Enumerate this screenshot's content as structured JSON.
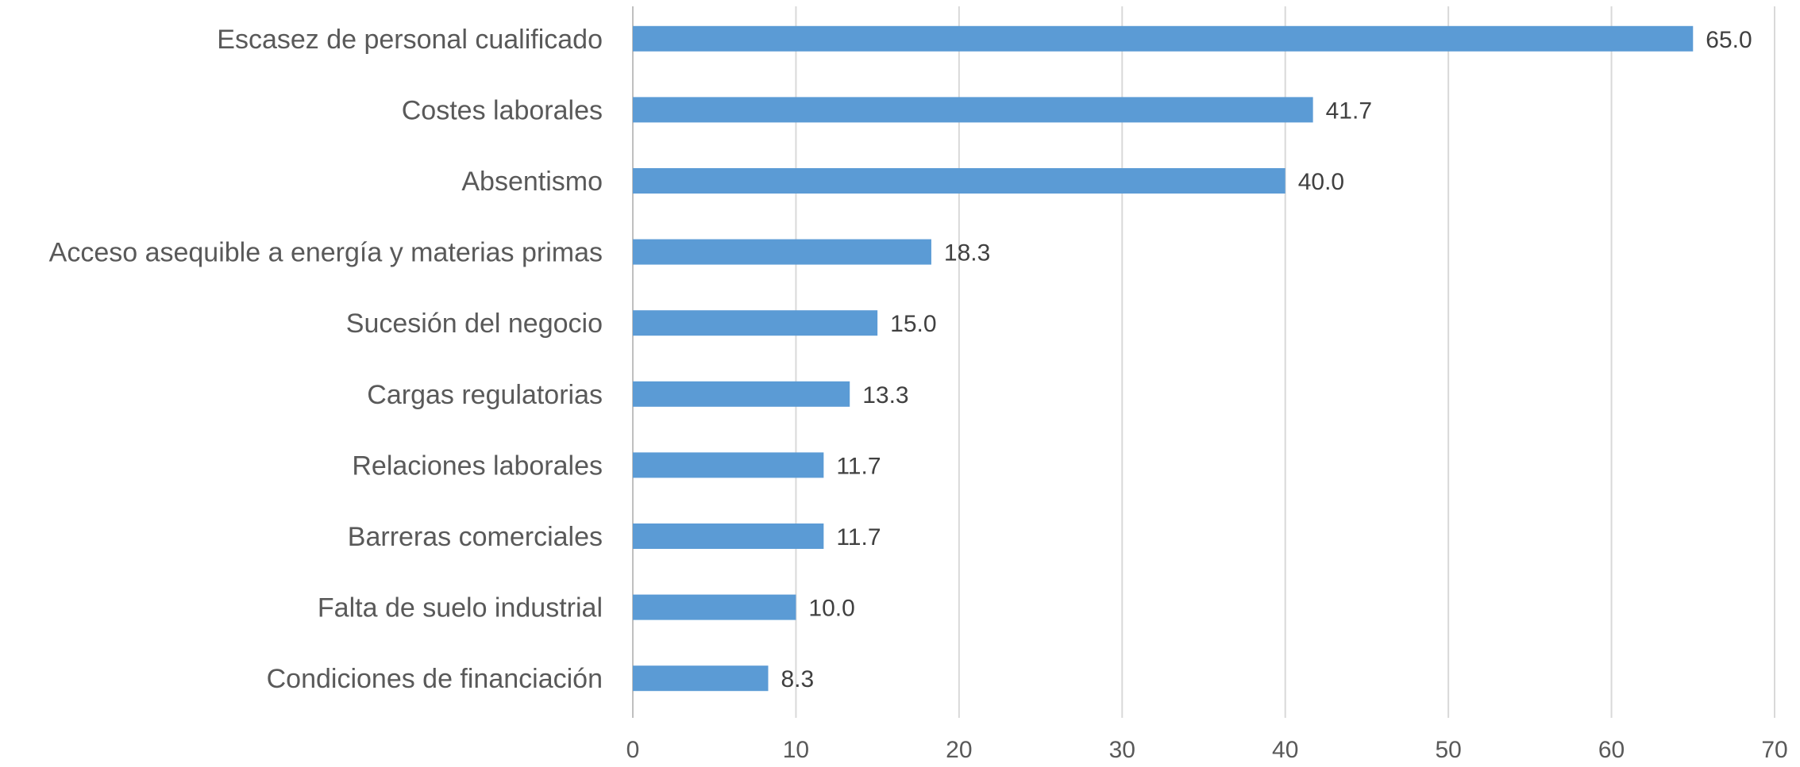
{
  "chart_data": {
    "type": "bar",
    "orientation": "horizontal",
    "categories": [
      "Escasez de personal cualificado",
      "Costes laborales",
      "Absentismo",
      "Acceso asequible a energía y materias primas",
      "Sucesión del negocio",
      "Cargas regulatorias",
      "Relaciones laborales",
      "Barreras comerciales",
      "Falta de suelo industrial",
      "Condiciones de financiación"
    ],
    "values": [
      65.0,
      41.7,
      40.0,
      18.3,
      15.0,
      13.3,
      11.7,
      11.7,
      10.0,
      8.3
    ],
    "data_labels": [
      "65.0",
      "41.7",
      "40.0",
      "18.3",
      "15.0",
      "13.3",
      "11.7",
      "11.7",
      "10.0",
      "8.3"
    ],
    "xlim": [
      0,
      70
    ],
    "xticks": [
      0,
      10,
      20,
      30,
      40,
      50,
      60,
      70
    ],
    "xtick_labels": [
      "0",
      "10",
      "20",
      "30",
      "40",
      "50",
      "60",
      "70"
    ],
    "grid": "vertical",
    "legend": "none",
    "colors": {
      "bar": "#5b9bd5",
      "grid": "#d9d9d9",
      "text": "#595959"
    }
  }
}
